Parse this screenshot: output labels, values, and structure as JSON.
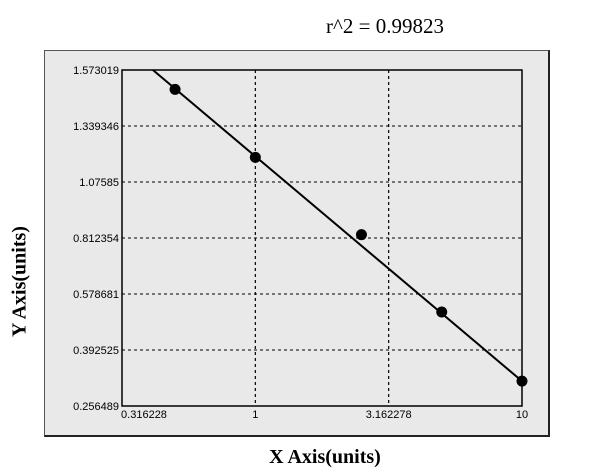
{
  "chart_data": {
    "type": "scatter",
    "title": "r^2 = 0.99823",
    "xlabel": "X Axis(units)",
    "ylabel": "Y Axis(units)",
    "x_scale": "log",
    "xlim": [
      0.316228,
      10
    ],
    "ylim": [
      0.256489,
      1.573019
    ],
    "x_ticks": [
      "0.316228",
      "1",
      "3.162278",
      "10"
    ],
    "x_tick_values": [
      0.316228,
      1,
      3.162278,
      10
    ],
    "y_ticks": [
      "1.573019",
      "1.339346",
      "1.07585",
      "0.812354",
      "0.578681",
      "0.392525",
      "0.256489"
    ],
    "y_tick_values": [
      1.573019,
      1.339346,
      1.07585,
      0.812354,
      0.578681,
      0.392525,
      0.256489
    ],
    "grid": true,
    "points": [
      {
        "x": 0.5,
        "y": 1.492
      },
      {
        "x": 1,
        "y": 1.192
      },
      {
        "x": 2.5,
        "y": 0.828
      },
      {
        "x": 5,
        "y": 0.519
      },
      {
        "x": 10,
        "y": 0.317
      }
    ],
    "fit_line": [
      {
        "x": 0.413,
        "y": 1.573019
      },
      {
        "x": 10,
        "y": 0.317
      }
    ],
    "colors": {
      "background": "#e9e9e9",
      "marks": "#000000"
    }
  }
}
